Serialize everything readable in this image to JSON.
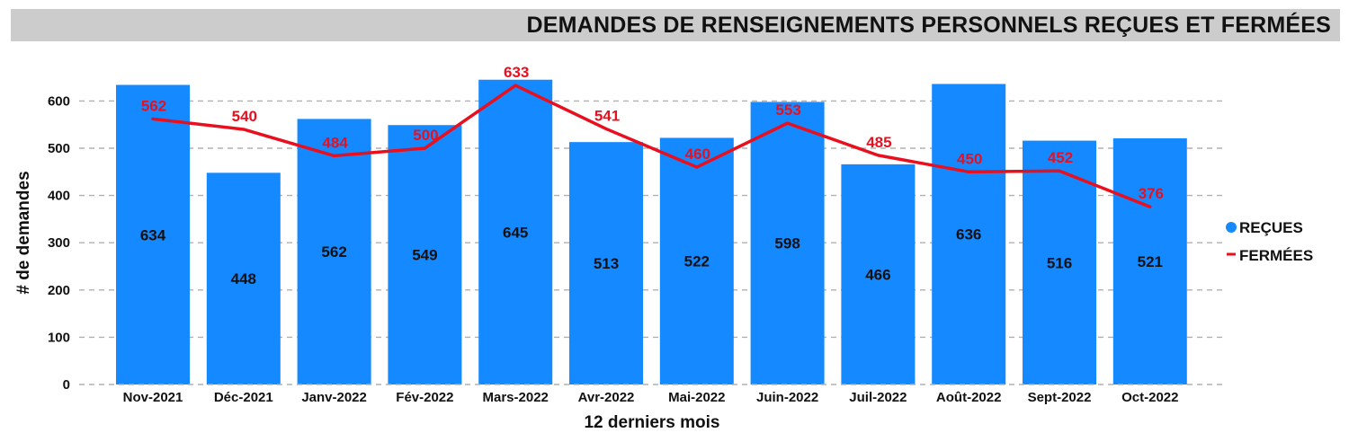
{
  "title": "DEMANDES DE RENSEIGNEMENTS PERSONNELS REÇUES ET FERMÉES",
  "colors": {
    "bar": "#1589ff",
    "line": "#e8101e",
    "grid": "#b0b0b0",
    "title_bg": "#cccccc"
  },
  "chart_data": {
    "type": "bar",
    "title": "DEMANDES DE RENSEIGNEMENTS PERSONNELS REÇUES ET FERMÉES",
    "xlabel": "12 derniers mois",
    "ylabel": "# de demandes",
    "ylim": [
      0,
      680
    ],
    "yticks": [
      0,
      100,
      200,
      300,
      400,
      500,
      600
    ],
    "grid": true,
    "legend_position": "right",
    "categories": [
      "Nov-2021",
      "Déc-2021",
      "Janv-2022",
      "Fév-2022",
      "Mars-2022",
      "Avr-2022",
      "Mai-2022",
      "Juin-2022",
      "Juil-2022",
      "Août-2022",
      "Sept-2022",
      "Oct-2022"
    ],
    "series": [
      {
        "name": "REÇUES",
        "type": "bar",
        "values": [
          634,
          448,
          562,
          549,
          645,
          513,
          522,
          598,
          466,
          636,
          516,
          521
        ]
      },
      {
        "name": "FERMÉES",
        "type": "line",
        "values": [
          562,
          540,
          484,
          500,
          633,
          541,
          460,
          553,
          485,
          450,
          452,
          376
        ]
      }
    ]
  }
}
